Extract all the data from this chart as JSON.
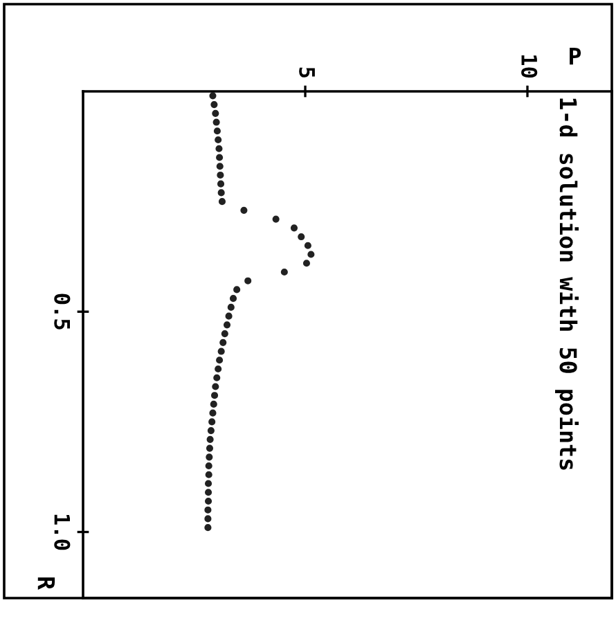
{
  "chart_data": {
    "type": "scatter",
    "title": "1-d solution with 50 points",
    "xlabel": "P",
    "ylabel": "R",
    "x": [
      2.92,
      2.95,
      2.98,
      3.0,
      3.02,
      3.04,
      3.06,
      3.07,
      3.08,
      3.09,
      3.1,
      3.11,
      3.13,
      3.62,
      4.34,
      4.75,
      4.91,
      5.06,
      5.13,
      5.03,
      4.53,
      3.71,
      3.46,
      3.38,
      3.33,
      3.28,
      3.24,
      3.19,
      3.15,
      3.11,
      3.07,
      3.04,
      3.01,
      2.98,
      2.96,
      2.94,
      2.92,
      2.9,
      2.88,
      2.86,
      2.85,
      2.84,
      2.83,
      2.83,
      2.82,
      2.82,
      2.82,
      2.81,
      2.81,
      2.81
    ],
    "series": [
      {
        "color": "#222222",
        "values": [
          0.01,
          0.03,
          0.05,
          0.07,
          0.09,
          0.11,
          0.13,
          0.15,
          0.17,
          0.19,
          0.21,
          0.23,
          0.25,
          0.27,
          0.29,
          0.31,
          0.33,
          0.35,
          0.37,
          0.39,
          0.41,
          0.43,
          0.45,
          0.47,
          0.49,
          0.51,
          0.53,
          0.55,
          0.57,
          0.59,
          0.61,
          0.63,
          0.65,
          0.67,
          0.69,
          0.71,
          0.73,
          0.75,
          0.77,
          0.79,
          0.81,
          0.83,
          0.85,
          0.87,
          0.89,
          0.91,
          0.93,
          0.95,
          0.97,
          0.99
        ]
      }
    ],
    "xlim": [
      0,
      11.9
    ],
    "ylim": [
      1.15,
      0
    ],
    "xticks": [
      5,
      10
    ],
    "yticks": [
      {
        "value": 0.5,
        "label": "0.5"
      },
      {
        "value": 1.0,
        "label": "1.0"
      }
    ],
    "marker": "circle",
    "grid": false,
    "legend": false
  }
}
